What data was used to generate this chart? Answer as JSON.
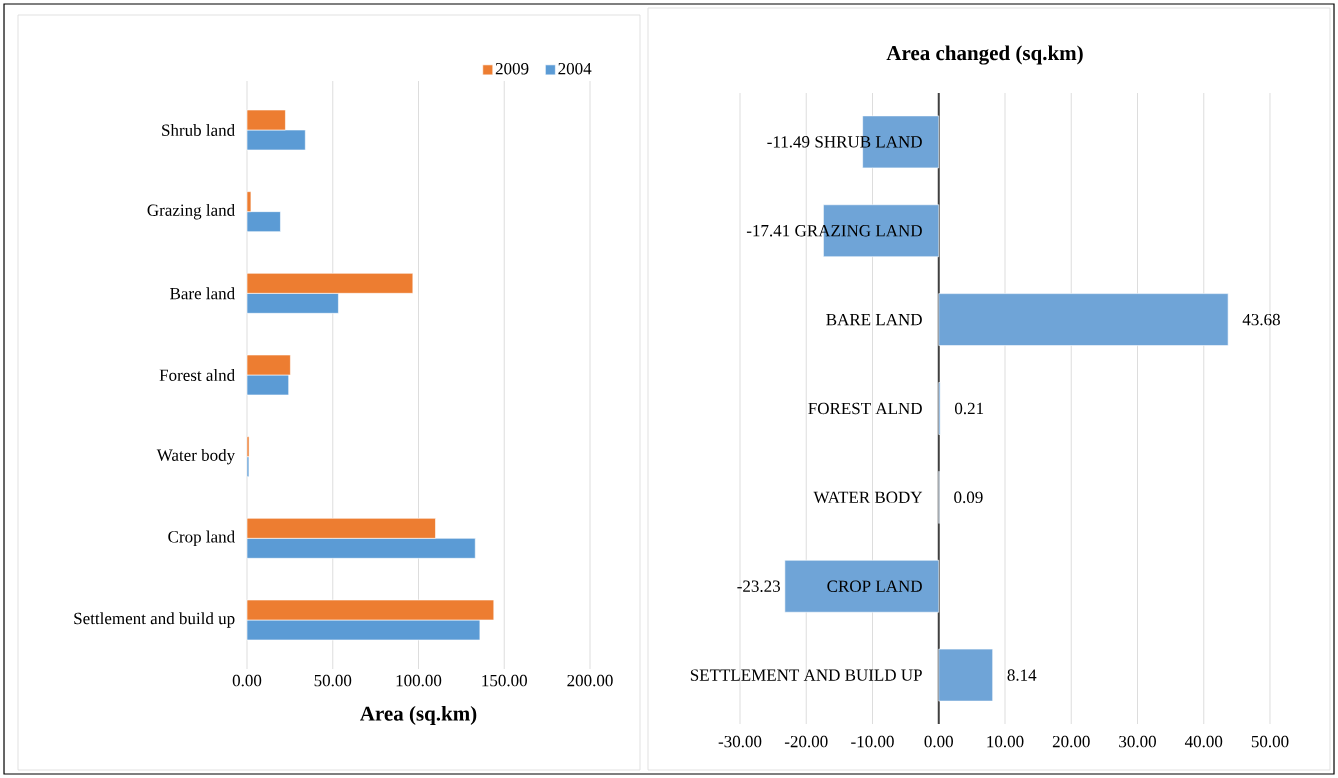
{
  "chart_data": [
    {
      "type": "bar",
      "orientation": "horizontal",
      "xlabel": "Area (sq.km)",
      "legend": "top right",
      "grid": "x",
      "categories": [
        "Shrub land",
        "Grazing land",
        "Bare land",
        "Forest alnd",
        "Water body",
        "Crop land",
        "Settlement and build up"
      ],
      "series": [
        {
          "name": "2004",
          "color": "#5b9bd5",
          "values": [
            34.0,
            19.5,
            53.3,
            24.3,
            1.1,
            133.1,
            135.8
          ]
        },
        {
          "name": "2009",
          "color": "#ed7d31",
          "values": [
            22.4,
            2.3,
            96.7,
            25.3,
            1.2,
            109.9,
            143.9
          ]
        }
      ],
      "xlim": [
        0,
        200
      ],
      "xticks": [
        {
          "value": 0,
          "label": "0.00"
        },
        {
          "value": 50,
          "label": "50.00"
        },
        {
          "value": 100,
          "label": "100.00"
        },
        {
          "value": 150,
          "label": "150.00"
        },
        {
          "value": 200,
          "label": "200.00"
        }
      ]
    },
    {
      "type": "bar",
      "orientation": "horizontal",
      "title": "Area changed (sq.km)",
      "grid": "x",
      "data_labels": true,
      "categories": [
        "SHRUB LAND",
        "GRAZING LAND",
        "BARE LAND",
        "FOREST ALND",
        "WATER BODY",
        "CROP LAND",
        "SETTLEMENT AND BUILD UP"
      ],
      "values": [
        -11.49,
        -17.41,
        43.68,
        0.21,
        0.09,
        -23.23,
        8.14
      ],
      "color": "#6fa4d7",
      "xlim": [
        -30,
        50
      ],
      "xticks": [
        {
          "value": -30,
          "label": "-30.00"
        },
        {
          "value": -20,
          "label": "-20.00"
        },
        {
          "value": -10,
          "label": "-10.00"
        },
        {
          "value": 0,
          "label": "0.00"
        },
        {
          "value": 10,
          "label": "10.00"
        },
        {
          "value": 20,
          "label": "20.00"
        },
        {
          "value": 30,
          "label": "30.00"
        },
        {
          "value": 40,
          "label": "40.00"
        },
        {
          "value": 50,
          "label": "50.00"
        }
      ]
    }
  ]
}
